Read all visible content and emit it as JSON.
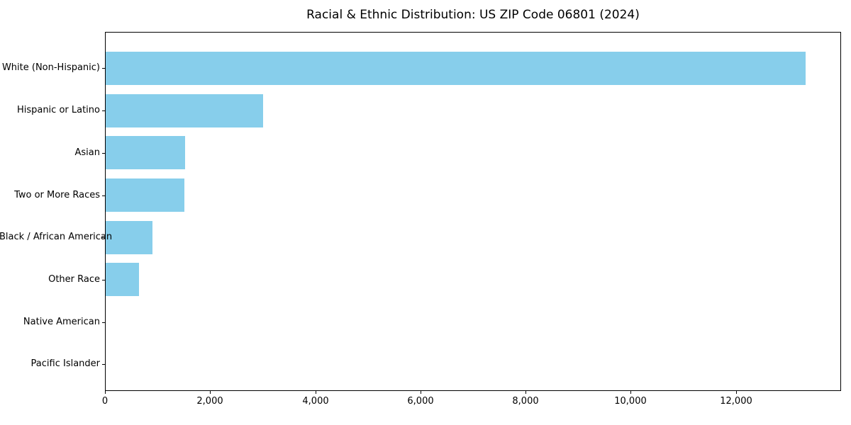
{
  "title": "Racial & Ethnic Distribution: US ZIP Code 06801 (2024)",
  "colors": {
    "bar": "#87CEEB",
    "text": "#000000",
    "spine": "#000000",
    "background": "#ffffff"
  },
  "chart_data": {
    "type": "bar",
    "orientation": "horizontal",
    "title": "Racial & Ethnic Distribution: US ZIP Code 06801 (2024)",
    "categories": [
      "White (Non-Hispanic)",
      "Hispanic or Latino",
      "Asian",
      "Two or More Races",
      "Black / African American",
      "Other Race",
      "Native American",
      "Pacific Islander"
    ],
    "values": [
      13310,
      2990,
      1515,
      1495,
      885,
      640,
      0,
      0
    ],
    "xlabel": "",
    "ylabel": "",
    "xlim": [
      0,
      14000
    ],
    "xticks": [
      0,
      2000,
      4000,
      6000,
      8000,
      10000,
      12000
    ],
    "xtick_labels": [
      "0",
      "2,000",
      "4,000",
      "6,000",
      "8,000",
      "10,000",
      "12,000"
    ],
    "bar_color": "#87CEEB",
    "grid": false,
    "legend": null
  }
}
